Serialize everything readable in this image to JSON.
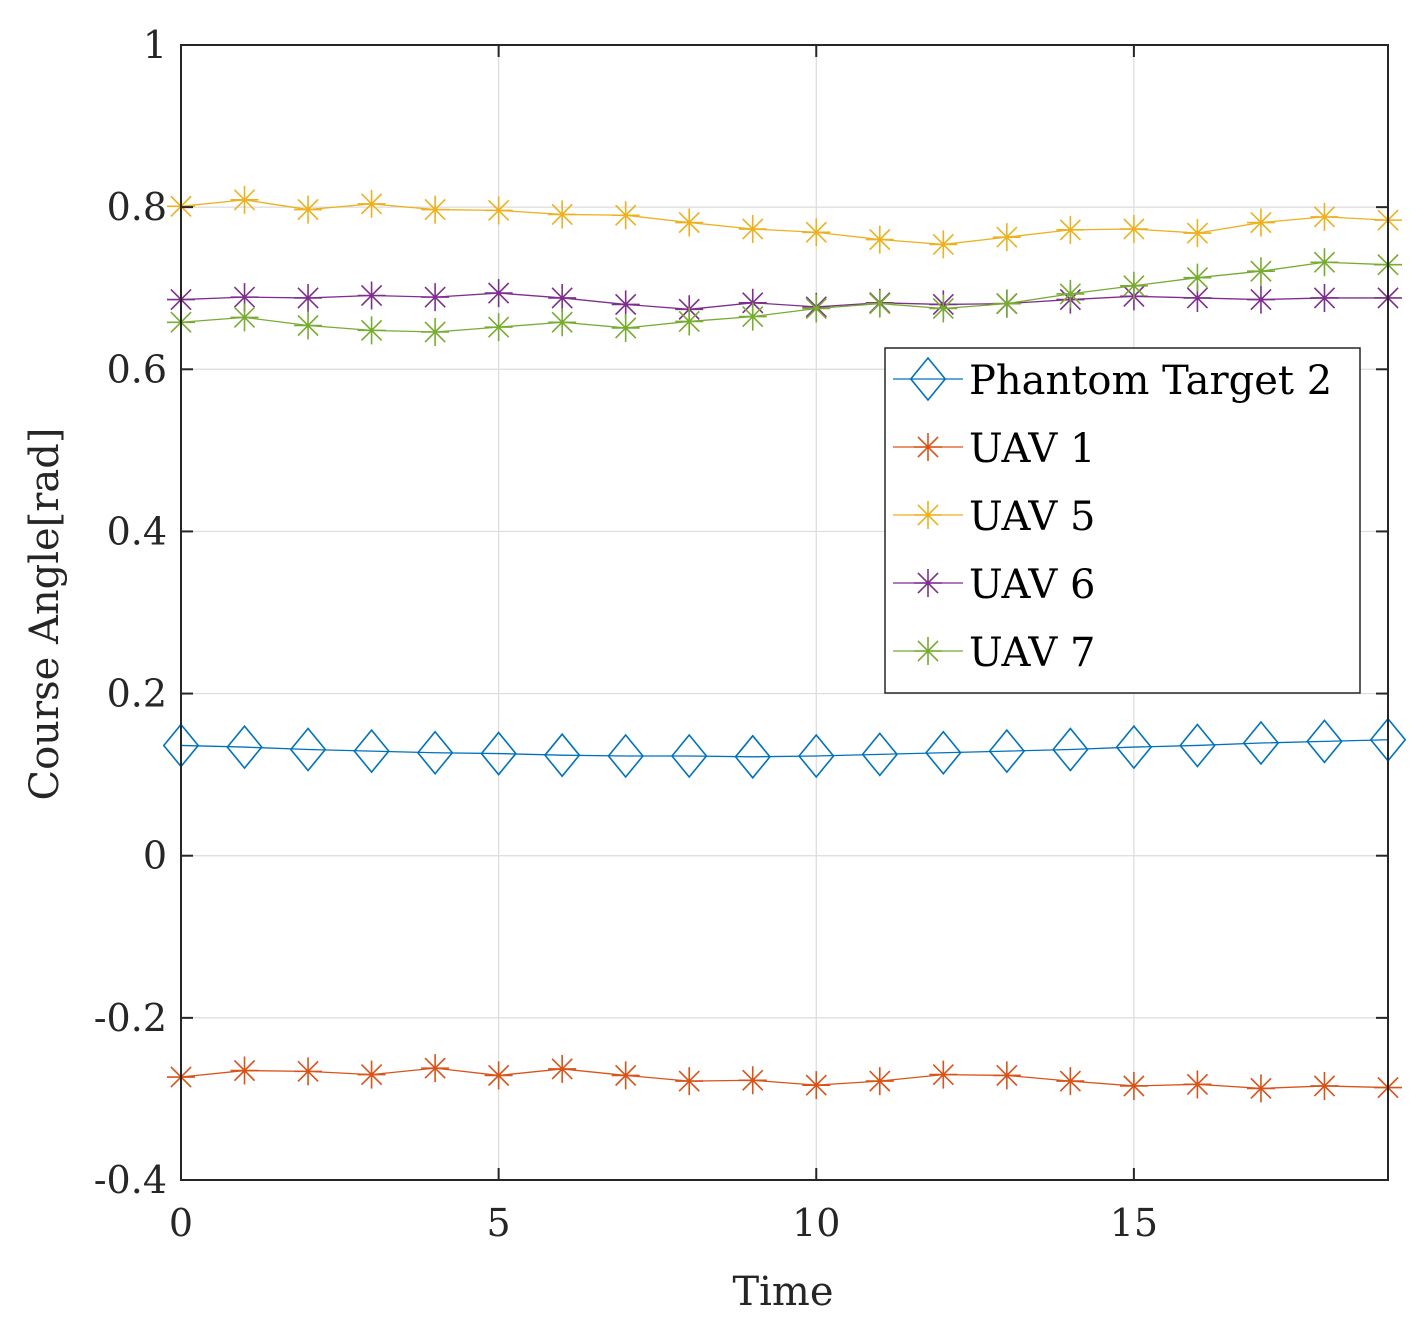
{
  "chart_data": {
    "type": "line",
    "title": "",
    "xlabel": "Time",
    "ylabel": "Course Angle[rad]",
    "xlim": [
      0,
      19
    ],
    "ylim": [
      -0.4,
      1
    ],
    "xticks": [
      0,
      5,
      10,
      15
    ],
    "xtick_labels": [
      "0",
      "5",
      "10",
      "15"
    ],
    "yticks": [
      -0.4,
      -0.2,
      0,
      0.2,
      0.4,
      0.6,
      0.8,
      1
    ],
    "ytick_labels": [
      "-0.4",
      "-0.2",
      "0",
      "0.2",
      "0.4",
      "0.6",
      "0.8",
      "1"
    ],
    "grid": true,
    "legend_position": "right",
    "x": [
      0,
      1,
      2,
      3,
      4,
      5,
      6,
      7,
      8,
      9,
      10,
      11,
      12,
      13,
      14,
      15,
      16,
      17,
      18,
      19
    ],
    "series": [
      {
        "name": "Phantom Target 2",
        "color": "#0072BD",
        "marker": "diamond",
        "values": [
          0.136,
          0.134,
          0.131,
          0.129,
          0.127,
          0.126,
          0.124,
          0.123,
          0.123,
          0.122,
          0.123,
          0.125,
          0.127,
          0.129,
          0.131,
          0.134,
          0.136,
          0.139,
          0.141,
          0.143
        ]
      },
      {
        "name": "UAV 1",
        "color": "#D95319",
        "marker": "asterisk",
        "values": [
          -0.273,
          -0.265,
          -0.266,
          -0.27,
          -0.262,
          -0.271,
          -0.263,
          -0.271,
          -0.278,
          -0.277,
          -0.283,
          -0.278,
          -0.27,
          -0.271,
          -0.278,
          -0.284,
          -0.282,
          -0.287,
          -0.284,
          -0.286
        ]
      },
      {
        "name": "UAV 5",
        "color": "#EDB120",
        "marker": "asterisk",
        "values": [
          0.801,
          0.809,
          0.797,
          0.804,
          0.797,
          0.796,
          0.791,
          0.79,
          0.781,
          0.773,
          0.769,
          0.76,
          0.754,
          0.763,
          0.772,
          0.773,
          0.768,
          0.781,
          0.788,
          0.784
        ]
      },
      {
        "name": "UAV 6",
        "color": "#7E2F8E",
        "marker": "asterisk",
        "values": [
          0.686,
          0.689,
          0.688,
          0.691,
          0.689,
          0.694,
          0.688,
          0.68,
          0.674,
          0.682,
          0.677,
          0.682,
          0.68,
          0.681,
          0.686,
          0.69,
          0.688,
          0.686,
          0.688,
          0.688
        ]
      },
      {
        "name": "UAV 7",
        "color": "#77AC30",
        "marker": "asterisk",
        "values": [
          0.658,
          0.664,
          0.654,
          0.648,
          0.646,
          0.652,
          0.658,
          0.651,
          0.659,
          0.665,
          0.675,
          0.681,
          0.675,
          0.681,
          0.693,
          0.703,
          0.713,
          0.721,
          0.732,
          0.729
        ]
      }
    ]
  }
}
